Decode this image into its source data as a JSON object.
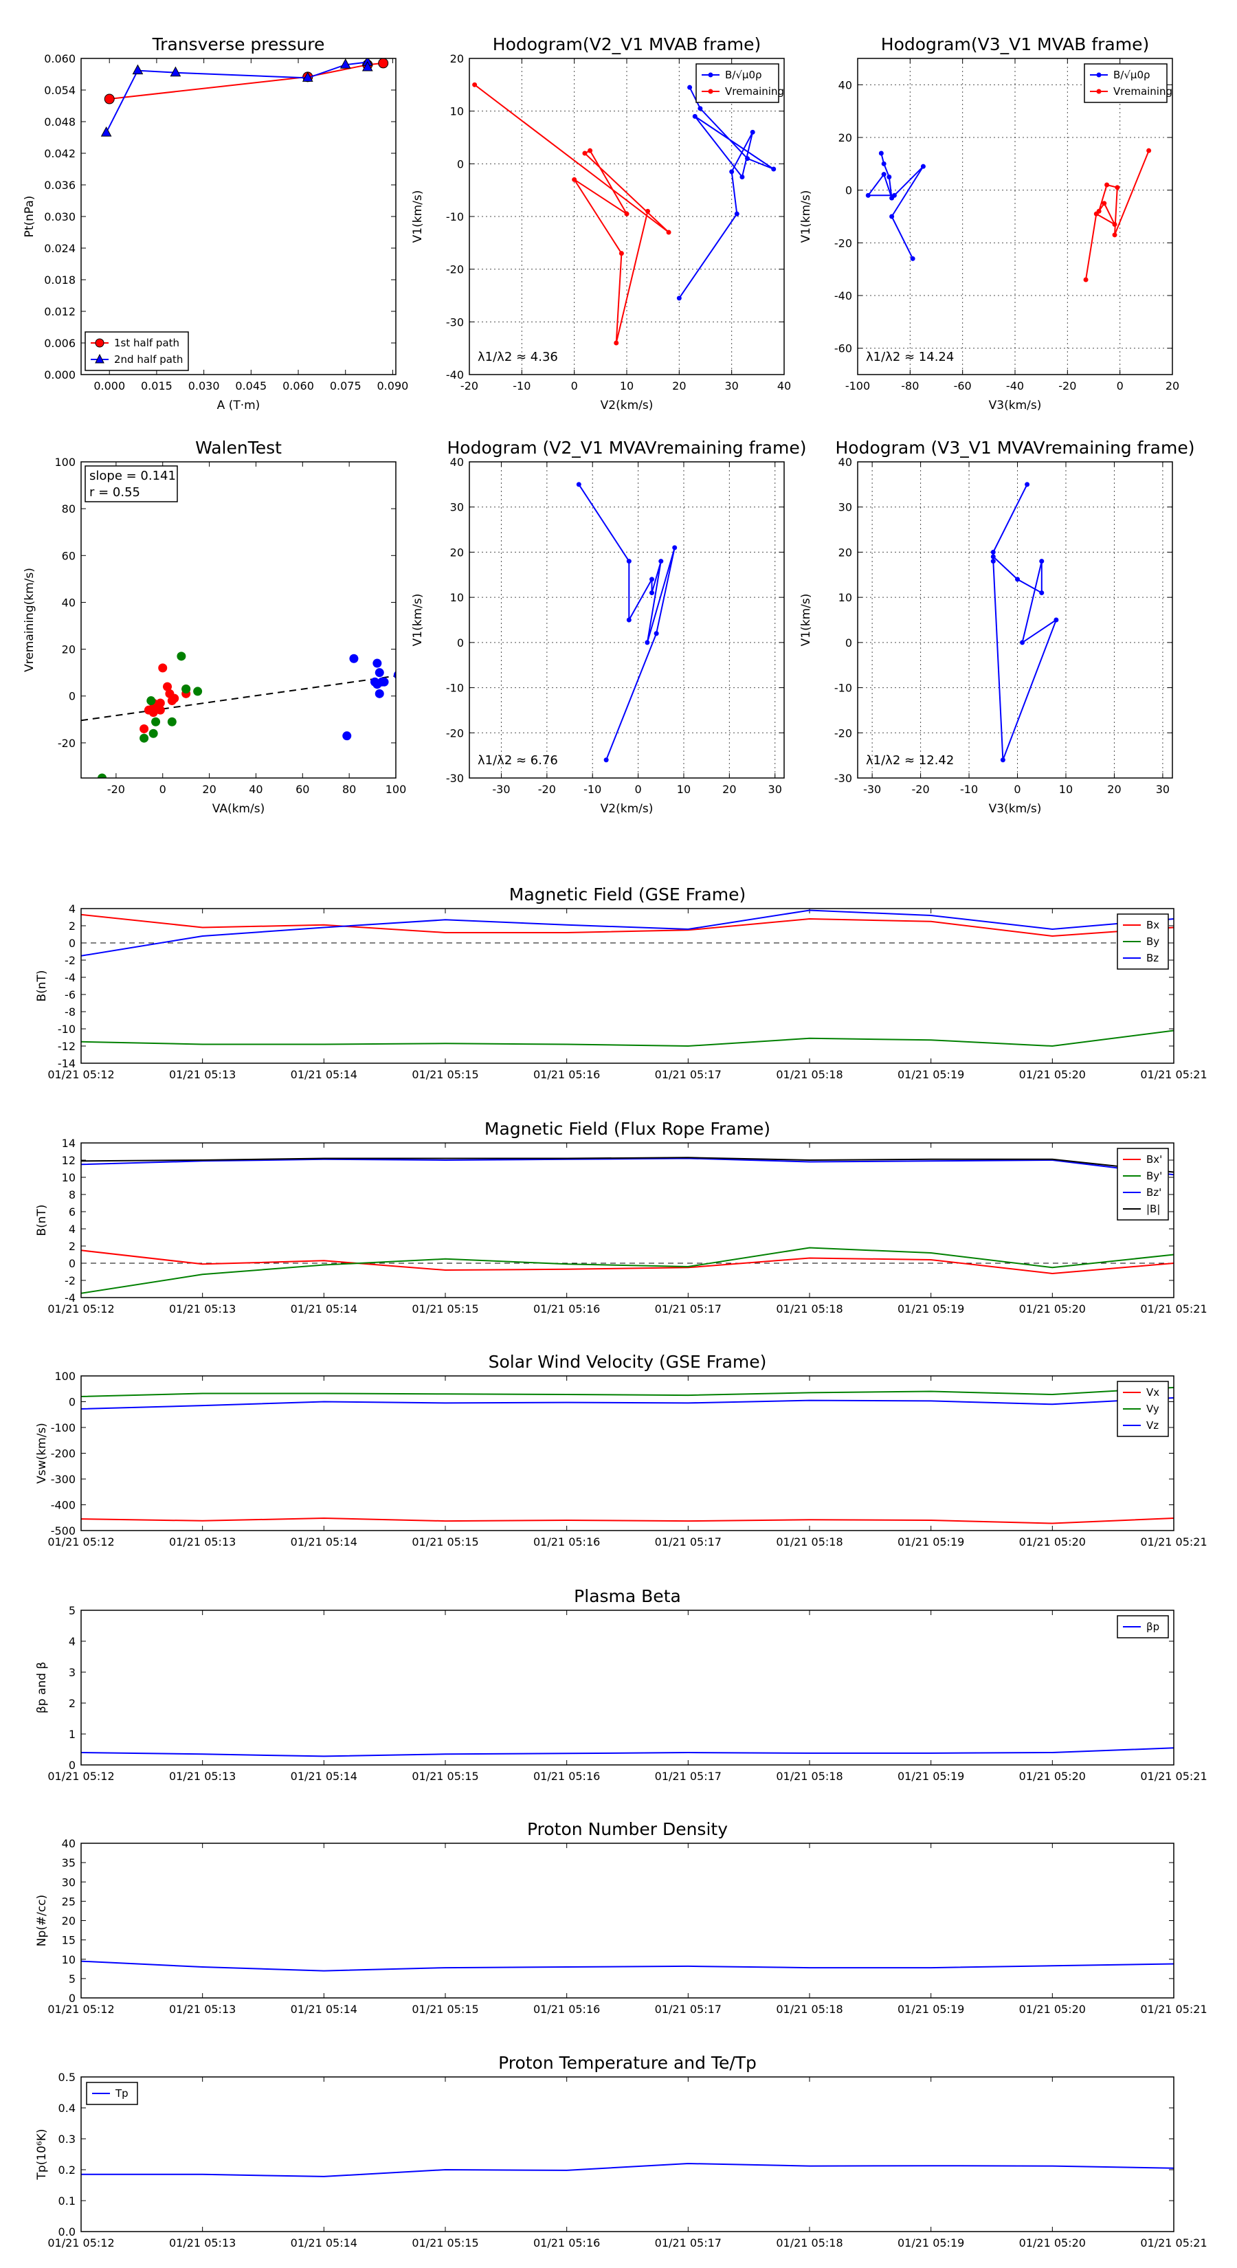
{
  "colors": {
    "red": "#ff0000",
    "green": "#008000",
    "blue": "#0000ff",
    "black": "#000000"
  },
  "chart_data": [
    {
      "id": "tp",
      "type": "line",
      "title": "Transverse pressure",
      "xlabel": "A (T·m)",
      "ylabel": "Pt(nPa)",
      "xlim": [
        -0.009,
        0.091
      ],
      "ylim": [
        0.0,
        0.06
      ],
      "xticks": [
        0.0,
        0.015,
        0.03,
        0.045,
        0.06,
        0.075,
        0.09
      ],
      "xticklabels": [
        "0.000",
        "0.015",
        "0.030",
        "0.045",
        "0.060",
        "0.075",
        "0.090"
      ],
      "yticks": [
        0.0,
        0.006,
        0.012,
        0.018,
        0.024,
        0.03,
        0.036,
        0.042,
        0.048,
        0.054,
        0.06
      ],
      "yticklabels": [
        "0.000",
        "0.006",
        "0.012",
        "0.018",
        "0.024",
        "0.030",
        "0.036",
        "0.042",
        "0.048",
        "0.054",
        "0.060"
      ],
      "grid": false,
      "legend": "lower-left",
      "series": [
        {
          "name": "1st half path",
          "color": "#ff0000",
          "marker": "circle",
          "x": [
            0.0,
            0.063,
            0.082,
            0.087
          ],
          "y": [
            0.0523,
            0.0565,
            0.0588,
            0.0591
          ]
        },
        {
          "name": "2nd half path",
          "color": "#0000ff",
          "marker": "triangle",
          "x": [
            -0.001,
            0.009,
            0.021,
            0.063,
            0.075,
            0.082,
            0.082
          ],
          "y": [
            0.0459,
            0.0577,
            0.0573,
            0.0563,
            0.0588,
            0.0593,
            0.0583
          ]
        }
      ]
    },
    {
      "id": "h1",
      "type": "line",
      "title": "Hodogram(V2_V1 MVAB frame)",
      "xlabel": "V2(km/s)",
      "ylabel": "V1(km/s)",
      "xlim": [
        -20,
        40
      ],
      "ylim": [
        -40,
        20
      ],
      "xticks": [
        -20,
        -10,
        0,
        10,
        20,
        30,
        40
      ],
      "yticks": [
        -40,
        -30,
        -20,
        -10,
        0,
        10,
        20
      ],
      "grid": true,
      "legend": "upper-right",
      "annotation": "λ1/λ2 ≈ 4.36",
      "series": [
        {
          "name": "B/√μ0ρ",
          "color": "#0000ff",
          "x": [
            22,
            24,
            33,
            38,
            23,
            32,
            34,
            30,
            31,
            20
          ],
          "y": [
            14.5,
            10.5,
            1,
            -1,
            9,
            -2.5,
            6,
            -1.5,
            -9.5,
            -25.5
          ]
        },
        {
          "name": "Vremaining",
          "color": "#ff0000",
          "x": [
            -19,
            18,
            2,
            3,
            10,
            0,
            9,
            8,
            14
          ],
          "y": [
            15,
            -13,
            2,
            2.5,
            -9.5,
            -3,
            -17,
            -34,
            -9
          ]
        }
      ]
    },
    {
      "id": "h2",
      "type": "line",
      "title": "Hodogram(V3_V1 MVAB frame)",
      "xlabel": "V3(km/s)",
      "ylabel": "V1(km/s)",
      "xlim": [
        -100,
        20
      ],
      "ylim": [
        -70,
        50
      ],
      "xticks": [
        -100,
        -80,
        -60,
        -40,
        -20,
        0,
        20
      ],
      "yticks": [
        -60,
        -40,
        -20,
        0,
        20,
        40
      ],
      "grid": true,
      "legend": "upper-right",
      "annotation": "λ1/λ2 ≈ 14.24",
      "series": [
        {
          "name": "B/√μ0ρ",
          "color": "#0000ff",
          "x": [
            -91,
            -90,
            -88,
            -87,
            -90,
            -96,
            -86,
            -75,
            -87,
            -79
          ],
          "y": [
            14,
            10,
            5,
            -3,
            6,
            -2,
            -2,
            9,
            -10,
            -26
          ]
        },
        {
          "name": "Vremaining",
          "color": "#ff0000",
          "x": [
            11,
            -2,
            -1,
            -5,
            -8,
            -6,
            -2,
            -9,
            -13
          ],
          "y": [
            15,
            -17,
            1,
            2,
            -8,
            -5,
            -13,
            -9,
            -34
          ]
        }
      ]
    },
    {
      "id": "walen",
      "type": "scatter",
      "title": "WalenTest",
      "xlabel": "VA(km/s)",
      "ylabel": "Vremaining(km/s)",
      "xlim": [
        -35,
        100
      ],
      "ylim": [
        -35,
        100
      ],
      "xticks": [
        -20,
        0,
        20,
        40,
        60,
        80,
        100
      ],
      "yticks": [
        -20,
        0,
        20,
        40,
        60,
        80,
        100
      ],
      "grid": false,
      "annotation_lines": [
        "slope = 0.141",
        "r = 0.55"
      ],
      "fit": {
        "slope": 0.141,
        "intercept": -5.5
      },
      "series": [
        {
          "name": "",
          "color": "#ff0000",
          "x": [
            0,
            2,
            5,
            4,
            -2,
            -4,
            -1,
            10,
            10,
            -4,
            -6,
            -3,
            -1,
            -8,
            3
          ],
          "y": [
            12,
            4,
            -1,
            -2,
            -4,
            -7,
            -6,
            3,
            1,
            -3,
            -6,
            -5,
            -3,
            -14,
            1
          ]
        },
        {
          "name": "",
          "color": "#008000",
          "x": [
            8,
            15,
            10,
            -5,
            -3,
            -4,
            4,
            -8,
            -26
          ],
          "y": [
            17,
            2,
            3,
            -2,
            -11,
            -16,
            -11,
            -18,
            -35
          ]
        },
        {
          "name": "",
          "color": "#0000ff",
          "x": [
            82,
            79,
            92,
            93,
            94,
            92,
            91,
            95,
            93,
            101
          ],
          "y": [
            16,
            -17,
            14,
            10,
            6,
            5,
            6,
            6,
            1,
            9
          ]
        }
      ]
    },
    {
      "id": "h3",
      "type": "line",
      "title": "Hodogram (V2_V1 MVAVremaining frame)",
      "xlabel": "V2(km/s)",
      "ylabel": "V1(km/s)",
      "xlim": [
        -37,
        32
      ],
      "ylim": [
        -30,
        40
      ],
      "xticks": [
        -30,
        -20,
        -10,
        0,
        10,
        20,
        30
      ],
      "yticks": [
        -30,
        -20,
        -10,
        0,
        10,
        20,
        30,
        40
      ],
      "grid": true,
      "annotation": "λ1/λ2 ≈ 6.76",
      "series": [
        {
          "name": "",
          "color": "#0000ff",
          "x": [
            -13,
            -2,
            -2,
            3,
            3,
            5,
            2,
            8,
            4,
            -7
          ],
          "y": [
            35,
            18,
            5,
            14,
            11,
            18,
            0,
            21,
            2,
            -26
          ]
        }
      ]
    },
    {
      "id": "h4",
      "type": "line",
      "title": "Hodogram (V3_V1 MVAVremaining frame)",
      "xlabel": "V3(km/s)",
      "ylabel": "V1(km/s)",
      "xlim": [
        -33,
        32
      ],
      "ylim": [
        -30,
        40
      ],
      "xticks": [
        -30,
        -20,
        -10,
        0,
        10,
        20,
        30
      ],
      "yticks": [
        -30,
        -20,
        -10,
        0,
        10,
        20,
        30,
        40
      ],
      "grid": true,
      "annotation": "λ1/λ2 ≈ 12.42",
      "series": [
        {
          "name": "",
          "color": "#0000ff",
          "x": [
            2,
            -5,
            -5,
            0,
            5,
            5,
            1,
            8,
            -3,
            -5
          ],
          "y": [
            35,
            20,
            19,
            14,
            11,
            18,
            0,
            5,
            -26,
            18
          ]
        }
      ]
    },
    {
      "id": "mag_gse",
      "type": "line",
      "title": "Magnetic Field (GSE Frame)",
      "ylabel": "B(nT)",
      "ylim": [
        -14,
        4
      ],
      "yticks": [
        -14,
        -12,
        -10,
        -8,
        -6,
        -4,
        -2,
        0,
        2,
        4
      ],
      "xlim": [
        0,
        9
      ],
      "categories": [
        "01/21 05:12",
        "01/21 05:13",
        "01/21 05:14",
        "01/21 05:15",
        "01/21 05:16",
        "01/21 05:17",
        "01/21 05:18",
        "01/21 05:19",
        "01/21 05:20",
        "01/21 05:21"
      ],
      "zero_line": true,
      "legend": "upper-right",
      "series": [
        {
          "name": "Bx",
          "color": "#ff0000",
          "values": [
            3.3,
            1.8,
            2.1,
            1.2,
            1.2,
            1.5,
            2.8,
            2.5,
            0.8,
            1.8
          ]
        },
        {
          "name": "By",
          "color": "#008000",
          "values": [
            -11.5,
            -11.8,
            -11.8,
            -11.7,
            -11.8,
            -12.0,
            -11.1,
            -11.3,
            -12.0,
            -10.2
          ]
        },
        {
          "name": "Bz",
          "color": "#0000ff",
          "values": [
            -1.5,
            0.8,
            1.8,
            2.7,
            2.1,
            1.6,
            3.8,
            3.2,
            1.6,
            2.8
          ]
        }
      ]
    },
    {
      "id": "mag_fr",
      "type": "line",
      "title": "Magnetic Field (Flux Rope Frame)",
      "ylabel": "B(nT)",
      "ylim": [
        -4,
        14
      ],
      "yticks": [
        -4,
        -2,
        0,
        2,
        4,
        6,
        8,
        10,
        12,
        14
      ],
      "xlim": [
        0,
        9
      ],
      "categories": [
        "01/21 05:12",
        "01/21 05:13",
        "01/21 05:14",
        "01/21 05:15",
        "01/21 05:16",
        "01/21 05:17",
        "01/21 05:18",
        "01/21 05:19",
        "01/21 05:20",
        "01/21 05:21"
      ],
      "zero_line": true,
      "legend": "upper-right",
      "series": [
        {
          "name": "Bx'",
          "color": "#ff0000",
          "values": [
            1.5,
            -0.1,
            0.3,
            -0.8,
            -0.7,
            -0.5,
            0.6,
            0.4,
            -1.2,
            0.0
          ]
        },
        {
          "name": "By'",
          "color": "#008000",
          "values": [
            -3.5,
            -1.3,
            -0.2,
            0.5,
            -0.1,
            -0.4,
            1.8,
            1.2,
            -0.5,
            1.0
          ]
        },
        {
          "name": "Bz'",
          "color": "#0000ff",
          "values": [
            11.5,
            11.9,
            12.1,
            12.0,
            12.1,
            12.2,
            11.8,
            11.9,
            12.0,
            10.3
          ]
        },
        {
          "name": "|B|",
          "color": "#000000",
          "values": [
            11.9,
            12.0,
            12.2,
            12.2,
            12.2,
            12.3,
            12.0,
            12.1,
            12.1,
            10.6
          ]
        }
      ]
    },
    {
      "id": "vsw",
      "type": "line",
      "title": "Solar Wind Velocity (GSE Frame)",
      "ylabel": "Vsw(km/s)",
      "ylim": [
        -500,
        100
      ],
      "yticks": [
        -500,
        -400,
        -300,
        -200,
        -100,
        0,
        100
      ],
      "xlim": [
        0,
        9
      ],
      "categories": [
        "01/21 05:12",
        "01/21 05:13",
        "01/21 05:14",
        "01/21 05:15",
        "01/21 05:16",
        "01/21 05:17",
        "01/21 05:18",
        "01/21 05:19",
        "01/21 05:20",
        "01/21 05:21"
      ],
      "legend": "upper-right",
      "series": [
        {
          "name": "Vx",
          "color": "#ff0000",
          "values": [
            -455,
            -462,
            -452,
            -463,
            -460,
            -463,
            -458,
            -460,
            -472,
            -452
          ]
        },
        {
          "name": "Vy",
          "color": "#008000",
          "values": [
            20,
            32,
            32,
            30,
            28,
            25,
            35,
            40,
            28,
            55
          ]
        },
        {
          "name": "Vz",
          "color": "#0000ff",
          "values": [
            -28,
            -15,
            0,
            -5,
            -3,
            -5,
            5,
            3,
            -10,
            15
          ]
        }
      ]
    },
    {
      "id": "beta",
      "type": "line",
      "title": "Plasma Beta",
      "ylabel": "βp and β",
      "ylim": [
        0,
        5
      ],
      "yticks": [
        0,
        1,
        2,
        3,
        4,
        5
      ],
      "xlim": [
        0,
        9
      ],
      "categories": [
        "01/21 05:12",
        "01/21 05:13",
        "01/21 05:14",
        "01/21 05:15",
        "01/21 05:16",
        "01/21 05:17",
        "01/21 05:18",
        "01/21 05:19",
        "01/21 05:20",
        "01/21 05:21"
      ],
      "legend": "upper-right",
      "series": [
        {
          "name": "βp",
          "color": "#0000ff",
          "values": [
            0.4,
            0.35,
            0.28,
            0.35,
            0.37,
            0.4,
            0.38,
            0.38,
            0.4,
            0.55
          ]
        }
      ]
    },
    {
      "id": "np",
      "type": "line",
      "title": "Proton Number Density",
      "ylabel": "Np(#/cc)",
      "ylim": [
        0,
        40
      ],
      "yticks": [
        0,
        5,
        10,
        15,
        20,
        25,
        30,
        35,
        40
      ],
      "xlim": [
        0,
        9
      ],
      "categories": [
        "01/21 05:12",
        "01/21 05:13",
        "01/21 05:14",
        "01/21 05:15",
        "01/21 05:16",
        "01/21 05:17",
        "01/21 05:18",
        "01/21 05:19",
        "01/21 05:20",
        "01/21 05:21"
      ],
      "series": [
        {
          "name": "",
          "color": "#0000ff",
          "values": [
            9.5,
            8.0,
            7.0,
            7.8,
            8.0,
            8.2,
            7.8,
            7.8,
            8.3,
            8.8
          ]
        }
      ]
    },
    {
      "id": "tp_temp",
      "type": "line",
      "title": "Proton Temperature and Te/Tp",
      "ylabel": "Tp(10⁶K)",
      "ylim": [
        0,
        0.5
      ],
      "yticks": [
        0,
        0.1,
        0.2,
        0.3,
        0.4,
        0.5
      ],
      "yticklabels": [
        "0.0",
        "0.1",
        "0.2",
        "0.3",
        "0.4",
        "0.5"
      ],
      "xlim": [
        0,
        9
      ],
      "categories": [
        "01/21 05:12",
        "01/21 05:13",
        "01/21 05:14",
        "01/21 05:15",
        "01/21 05:16",
        "01/21 05:17",
        "01/21 05:18",
        "01/21 05:19",
        "01/21 05:20",
        "01/21 05:21"
      ],
      "legend": "upper-left",
      "series": [
        {
          "name": "Tp",
          "color": "#0000ff",
          "values": [
            0.185,
            0.185,
            0.178,
            0.2,
            0.198,
            0.22,
            0.212,
            0.213,
            0.212,
            0.205
          ]
        }
      ]
    }
  ]
}
